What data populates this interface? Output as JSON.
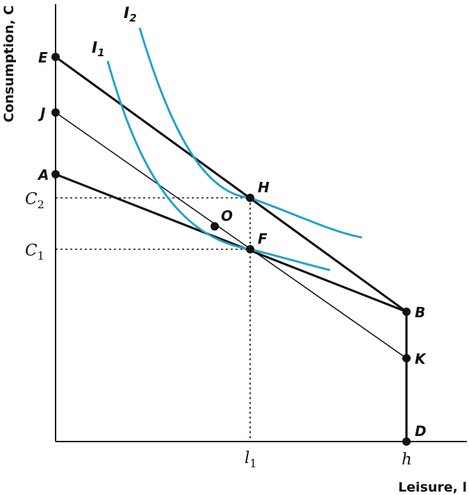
{
  "axes": {
    "y_title": "Consumption, C",
    "x_title": "Leisure, l"
  },
  "ticks": {
    "c1": {
      "main": "C",
      "sub": "1"
    },
    "c2": {
      "main": "C",
      "sub": "2"
    },
    "l1": {
      "main": "l",
      "sub": "1"
    },
    "h": {
      "main": "h"
    }
  },
  "curves": {
    "i1": {
      "main": "I",
      "sub": "1"
    },
    "i2": {
      "main": "I",
      "sub": "2"
    }
  },
  "points": {
    "E": "E",
    "J": "J",
    "A": "A",
    "H": "H",
    "O": "O",
    "F": "F",
    "B": "B",
    "K": "K",
    "D": "D"
  },
  "colors": {
    "indifference_curve": "#1fa3c9",
    "line": "#111111"
  }
}
